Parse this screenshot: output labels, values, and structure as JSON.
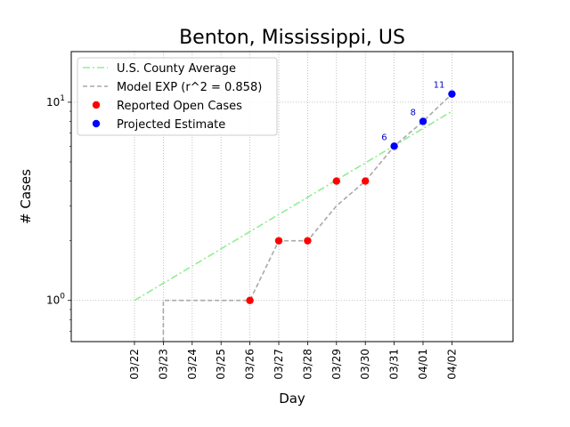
{
  "chart_data": {
    "type": "line",
    "title": "Benton, Mississippi, US",
    "xlabel": "Day",
    "ylabel": "# Cases",
    "yscale": "log",
    "ylim": [
      0.62,
      18
    ],
    "y_ticks": [
      {
        "value": 1,
        "label": "10^0"
      },
      {
        "value": 10,
        "label": "10^1"
      }
    ],
    "categories": [
      "03/22",
      "03/23",
      "03/24",
      "03/25",
      "03/26",
      "03/27",
      "03/28",
      "03/29",
      "03/30",
      "03/31",
      "04/01",
      "04/02"
    ],
    "grid": true,
    "legend_position": "top-left",
    "series": [
      {
        "name": "U.S. County Average",
        "style": "dash-dot",
        "color": "#90ee90",
        "points": [
          {
            "x": "03/22",
            "y": 1.0
          },
          {
            "x": "04/02",
            "y": 9.0
          }
        ]
      },
      {
        "name": "Model EXP (r^2 = 0.858)",
        "style": "dashed-step",
        "color": "#a9a9a9",
        "points": [
          {
            "x": "03/23",
            "y": 0.6
          },
          {
            "x": "03/23",
            "y": 1
          },
          {
            "x": "03/26",
            "y": 1
          },
          {
            "x": "03/27",
            "y": 2
          },
          {
            "x": "03/28",
            "y": 2
          },
          {
            "x": "03/29",
            "y": 3
          },
          {
            "x": "03/30",
            "y": 4
          },
          {
            "x": "03/31",
            "y": 6
          },
          {
            "x": "04/01",
            "y": 8
          },
          {
            "x": "04/02",
            "y": 11
          }
        ]
      },
      {
        "name": "Reported Open Cases",
        "style": "marker",
        "color": "#ff0000",
        "points": [
          {
            "x": "03/26",
            "y": 1
          },
          {
            "x": "03/27",
            "y": 2
          },
          {
            "x": "03/28",
            "y": 2
          },
          {
            "x": "03/29",
            "y": 4
          },
          {
            "x": "03/30",
            "y": 4
          }
        ]
      },
      {
        "name": "Projected Estimate",
        "style": "marker",
        "color": "#0000ff",
        "points": [
          {
            "x": "03/31",
            "y": 6,
            "label": "6"
          },
          {
            "x": "04/01",
            "y": 8,
            "label": "8"
          },
          {
            "x": "04/02",
            "y": 11,
            "label": "11"
          }
        ]
      }
    ]
  }
}
